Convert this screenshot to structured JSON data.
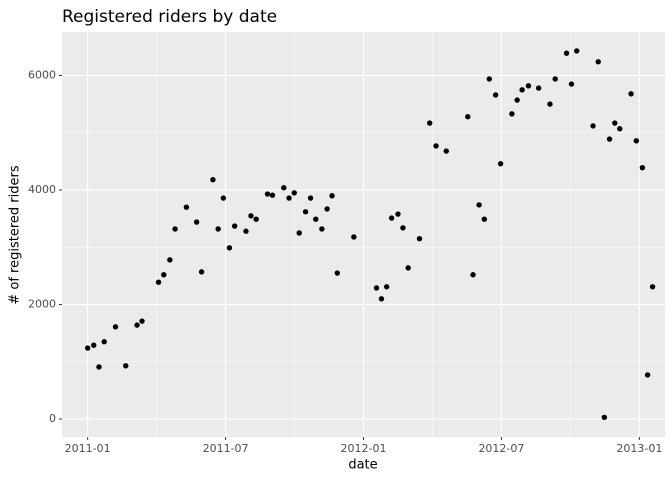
{
  "chart_data": {
    "type": "scatter",
    "title": "Registered riders by date",
    "x_label": "date",
    "y_label": "# of registered riders",
    "color": "#000000",
    "panel_color": "#ebebeb",
    "grid": true,
    "xlim": [
      2010.907,
      2013.093
    ],
    "ylim": [
      -314,
      6760
    ],
    "xticks": [
      {
        "value": 2011.0,
        "label": "2011-01"
      },
      {
        "value": 2011.5,
        "label": "2011-07"
      },
      {
        "value": 2012.0,
        "label": "2012-01"
      },
      {
        "value": 2012.5,
        "label": "2012-07"
      },
      {
        "value": 2013.0,
        "label": "2013-01"
      }
    ],
    "yticks": [
      0,
      2000,
      4000,
      6000
    ],
    "x": [
      2011.0,
      2011.022,
      2011.041,
      2011.06,
      2011.101,
      2011.138,
      2011.179,
      2011.197,
      2011.257,
      2011.276,
      2011.298,
      2011.317,
      2011.358,
      2011.395,
      2011.413,
      2011.454,
      2011.473,
      2011.492,
      2011.514,
      2011.533,
      2011.574,
      2011.592,
      2011.611,
      2011.652,
      2011.67,
      2011.711,
      2011.73,
      2011.749,
      2011.767,
      2011.79,
      2011.808,
      2011.827,
      2011.849,
      2011.868,
      2011.886,
      2011.905,
      2011.965,
      2012.047,
      2012.065,
      2012.084,
      2012.102,
      2012.125,
      2012.143,
      2012.162,
      2012.203,
      2012.24,
      2012.263,
      2012.3,
      2012.378,
      2012.397,
      2012.419,
      2012.438,
      2012.456,
      2012.479,
      2012.497,
      2012.538,
      2012.557,
      2012.575,
      2012.598,
      2012.635,
      2012.676,
      2012.695,
      2012.736,
      2012.754,
      2012.773,
      2012.832,
      2012.851,
      2012.873,
      2012.892,
      2012.911,
      2012.929,
      2012.97,
      2012.989,
      2013.011,
      2013.03,
      2013.048
    ],
    "values": [
      1240,
      1290,
      910,
      1350,
      1610,
      930,
      1640,
      1710,
      2390,
      2520,
      2780,
      3320,
      3700,
      3440,
      2570,
      4180,
      3320,
      3860,
      2990,
      3370,
      3280,
      3550,
      3490,
      3930,
      3910,
      4040,
      3860,
      3950,
      3250,
      3620,
      3860,
      3490,
      3320,
      3670,
      3900,
      2550,
      3180,
      2290,
      2100,
      2310,
      3510,
      3580,
      3340,
      2640,
      3150,
      5170,
      4770,
      4680,
      5280,
      2520,
      3740,
      3490,
      5940,
      5660,
      4460,
      5330,
      5570,
      5750,
      5820,
      5780,
      5500,
      5940,
      6390,
      5850,
      6430,
      5120,
      6240,
      30,
      4890,
      5170,
      5070,
      5680,
      4860,
      4390,
      770,
      2310
    ]
  }
}
